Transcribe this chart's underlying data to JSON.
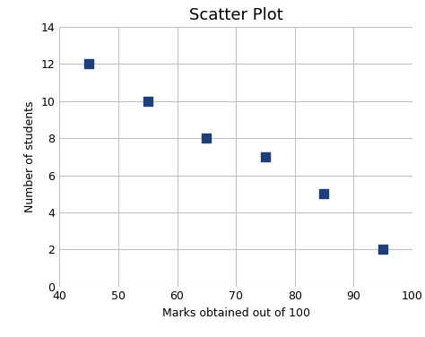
{
  "title": "Scatter Plot",
  "xlabel": "Marks obtained out of 100",
  "ylabel": "Number of students",
  "x": [
    45,
    55,
    65,
    75,
    85,
    95
  ],
  "y": [
    12,
    10,
    8,
    7,
    5,
    2
  ],
  "xlim": [
    40,
    100
  ],
  "ylim": [
    0,
    14
  ],
  "xticks": [
    40,
    50,
    60,
    70,
    80,
    90,
    100
  ],
  "yticks": [
    0,
    2,
    4,
    6,
    8,
    10,
    12,
    14
  ],
  "marker_color": "#1F3F7A",
  "marker": "s",
  "marker_size": 55,
  "background_color": "#ffffff",
  "grid_color": "#c0c0c0",
  "title_fontsize": 13,
  "label_fontsize": 9,
  "tick_fontsize": 9
}
